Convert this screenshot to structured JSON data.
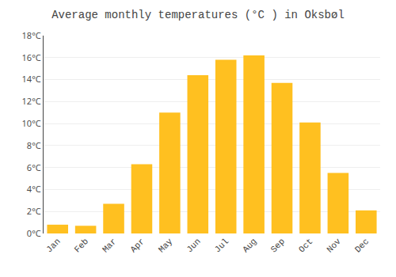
{
  "chart_data": {
    "type": "bar",
    "title": "Average monthly temperatures (°C ) in Oksbøl",
    "categories": [
      "Jan",
      "Feb",
      "Mar",
      "Apr",
      "May",
      "Jun",
      "Jul",
      "Aug",
      "Sep",
      "Oct",
      "Nov",
      "Dec"
    ],
    "values": [
      0.8,
      0.7,
      2.7,
      6.3,
      11.0,
      14.4,
      15.8,
      16.2,
      13.7,
      10.1,
      5.5,
      2.1
    ],
    "color": "#FFC020",
    "ylim": [
      0,
      18
    ],
    "yticks": [
      {
        "value": 0,
        "label": "0°C"
      },
      {
        "value": 2,
        "label": "2°C"
      },
      {
        "value": 4,
        "label": "4°C"
      },
      {
        "value": 6,
        "label": "6°C"
      },
      {
        "value": 8,
        "label": "8°C"
      },
      {
        "value": 10,
        "label": "10°C"
      },
      {
        "value": 12,
        "label": "12°C"
      },
      {
        "value": 14,
        "label": "14°C"
      },
      {
        "value": 16,
        "label": "16°C"
      },
      {
        "value": 18,
        "label": "18°C"
      }
    ],
    "grid": true
  }
}
